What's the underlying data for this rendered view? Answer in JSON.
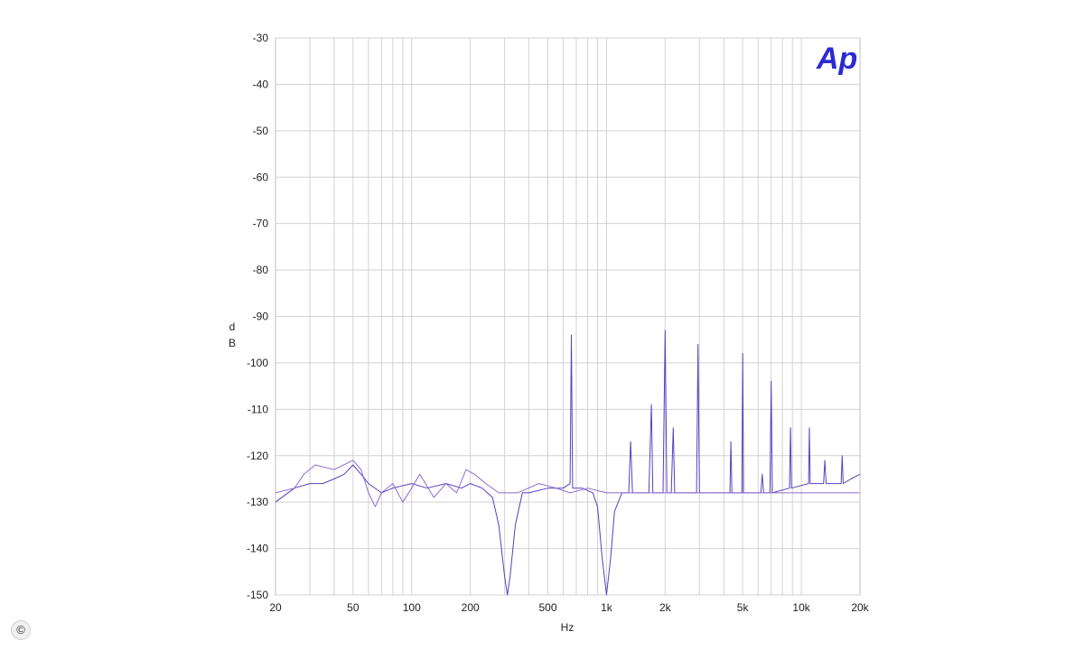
{
  "logo_text": "Ap",
  "copyright_symbol": "©",
  "chart_data": {
    "type": "line",
    "title": "",
    "xlabel": "Hz",
    "ylabel": "dB",
    "xscale": "log",
    "xlim": [
      20,
      20000
    ],
    "ylim": [
      -150,
      -30
    ],
    "grid": true,
    "x_ticks": [
      20,
      50,
      100,
      200,
      500,
      1000,
      2000,
      5000,
      10000,
      20000
    ],
    "x_tick_labels": [
      "20",
      "50",
      "100",
      "200",
      "500",
      "1k",
      "2k",
      "5k",
      "10k",
      "20k"
    ],
    "y_ticks": [
      -30,
      -40,
      -50,
      -60,
      -70,
      -80,
      -90,
      -100,
      -110,
      -120,
      -130,
      -140,
      -150
    ],
    "y_tick_labels": [
      "-30",
      "-40",
      "-50",
      "-60",
      "-70",
      "-80",
      "-90",
      "-100",
      "-110",
      "-120",
      "-130",
      "-140",
      "-150"
    ],
    "colors": {
      "series_a": "#5a3fc0",
      "series_b": "#8e6bcf",
      "grid": "#d2d2d2",
      "logo": "#2a2ad4"
    },
    "series": [
      {
        "points": [
          [
            20,
            -130
          ],
          [
            25,
            -127
          ],
          [
            30,
            -126
          ],
          [
            35,
            -126
          ],
          [
            40,
            -125
          ],
          [
            45,
            -124
          ],
          [
            50,
            -122
          ],
          [
            55,
            -124
          ],
          [
            60,
            -126
          ],
          [
            70,
            -128
          ],
          [
            80,
            -127
          ],
          [
            100,
            -126
          ],
          [
            120,
            -127
          ],
          [
            150,
            -126
          ],
          [
            180,
            -127
          ],
          [
            200,
            -126
          ],
          [
            230,
            -127
          ],
          [
            260,
            -129
          ],
          [
            280,
            -135
          ],
          [
            300,
            -146
          ],
          [
            310,
            -150
          ],
          [
            320,
            -146
          ],
          [
            340,
            -135
          ],
          [
            370,
            -128
          ],
          [
            400,
            -128
          ],
          [
            500,
            -127
          ],
          [
            600,
            -127
          ],
          [
            650,
            -126
          ],
          [
            660,
            -94
          ],
          [
            670,
            -127
          ],
          [
            750,
            -127
          ],
          [
            850,
            -128
          ],
          [
            900,
            -131
          ],
          [
            950,
            -142
          ],
          [
            1000,
            -150
          ],
          [
            1050,
            -142
          ],
          [
            1100,
            -132
          ],
          [
            1200,
            -128
          ],
          [
            1300,
            -128
          ],
          [
            1330,
            -117
          ],
          [
            1360,
            -128
          ],
          [
            1500,
            -128
          ],
          [
            1650,
            -128
          ],
          [
            1700,
            -109
          ],
          [
            1730,
            -128
          ],
          [
            1950,
            -128
          ],
          [
            2000,
            -93
          ],
          [
            2040,
            -128
          ],
          [
            2150,
            -128
          ],
          [
            2200,
            -114
          ],
          [
            2240,
            -128
          ],
          [
            2900,
            -128
          ],
          [
            2950,
            -96
          ],
          [
            3000,
            -128
          ],
          [
            4300,
            -128
          ],
          [
            4350,
            -117
          ],
          [
            4400,
            -128
          ],
          [
            4950,
            -128
          ],
          [
            5000,
            -98
          ],
          [
            5050,
            -128
          ],
          [
            6200,
            -128
          ],
          [
            6300,
            -124
          ],
          [
            6400,
            -128
          ],
          [
            6900,
            -128
          ],
          [
            7000,
            -104
          ],
          [
            7100,
            -128
          ],
          [
            8700,
            -127
          ],
          [
            8800,
            -114
          ],
          [
            8900,
            -127
          ],
          [
            10900,
            -126
          ],
          [
            11000,
            -114
          ],
          [
            11100,
            -126
          ],
          [
            13000,
            -126
          ],
          [
            13200,
            -121
          ],
          [
            13400,
            -126
          ],
          [
            16000,
            -126
          ],
          [
            16200,
            -120
          ],
          [
            16400,
            -126
          ],
          [
            18000,
            -125
          ],
          [
            20000,
            -124
          ]
        ]
      },
      {
        "points": [
          [
            20,
            -128
          ],
          [
            25,
            -127
          ],
          [
            28,
            -124
          ],
          [
            32,
            -122
          ],
          [
            40,
            -123
          ],
          [
            50,
            -121
          ],
          [
            55,
            -123
          ],
          [
            60,
            -128
          ],
          [
            65,
            -131
          ],
          [
            70,
            -128
          ],
          [
            80,
            -126
          ],
          [
            90,
            -130
          ],
          [
            100,
            -127
          ],
          [
            110,
            -124
          ],
          [
            130,
            -129
          ],
          [
            150,
            -126
          ],
          [
            170,
            -128
          ],
          [
            190,
            -123
          ],
          [
            210,
            -124
          ],
          [
            240,
            -126
          ],
          [
            280,
            -128
          ],
          [
            350,
            -128
          ],
          [
            450,
            -126
          ],
          [
            550,
            -127
          ],
          [
            650,
            -128
          ],
          [
            800,
            -127
          ],
          [
            1000,
            -128
          ],
          [
            1500,
            -128
          ],
          [
            2000,
            -128
          ],
          [
            3000,
            -128
          ],
          [
            4000,
            -128
          ],
          [
            5000,
            -128
          ],
          [
            7000,
            -128
          ],
          [
            10000,
            -128
          ],
          [
            14000,
            -128
          ],
          [
            20000,
            -128
          ]
        ]
      }
    ]
  }
}
